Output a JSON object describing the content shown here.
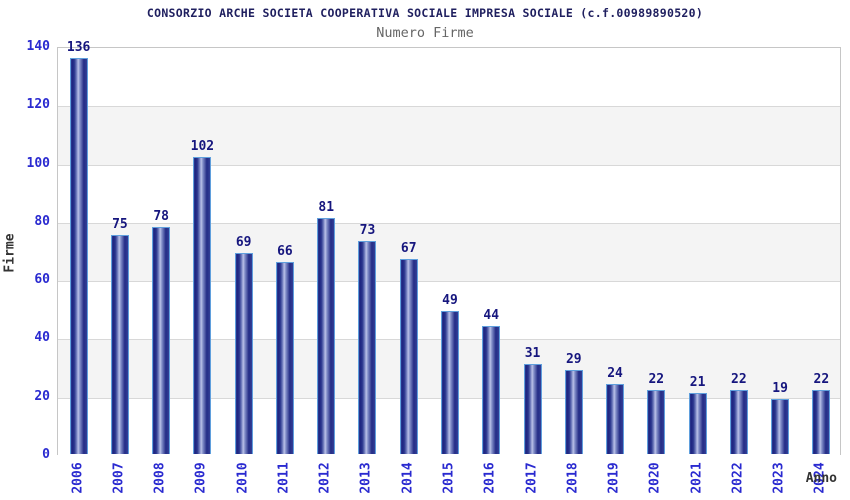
{
  "header": {
    "title": "CONSORZIO ARCHE SOCIETA COOPERATIVA SOCIALE IMPRESA SOCIALE (c.f.00989890520)",
    "subtitle": "Numero Firme"
  },
  "chart_data": {
    "type": "bar",
    "title": "CONSORZIO ARCHE SOCIETA COOPERATIVA SOCIALE IMPRESA SOCIALE (c.f.00989890520)",
    "subtitle": "Numero Firme",
    "xlabel": "Anno",
    "ylabel": "Firme",
    "categories": [
      "2006",
      "2007",
      "2008",
      "2009",
      "2010",
      "2011",
      "2012",
      "2013",
      "2014",
      "2015",
      "2016",
      "2017",
      "2018",
      "2019",
      "2020",
      "2021",
      "2022",
      "2023",
      "2024"
    ],
    "values": [
      136,
      75,
      78,
      102,
      69,
      66,
      81,
      73,
      67,
      49,
      44,
      31,
      29,
      24,
      22,
      21,
      22,
      19,
      22
    ],
    "ylim": [
      0,
      140
    ],
    "yticks": [
      0,
      20,
      40,
      60,
      80,
      100,
      120,
      140
    ],
    "grid": true,
    "legend": false,
    "colors": {
      "bar_dark": "#1d2480",
      "bar_highlight": "#b9c1e8",
      "bar_outline": "#5f9fdd",
      "tick_label": "#2a2ad0",
      "value_label": "#16167e",
      "title": "#1f1f5f",
      "subtitle": "#666666",
      "axis_title": "#333333",
      "band_gray": "#f4f4f4",
      "band_white": "#ffffff",
      "gridline": "#d8d8d8"
    }
  }
}
